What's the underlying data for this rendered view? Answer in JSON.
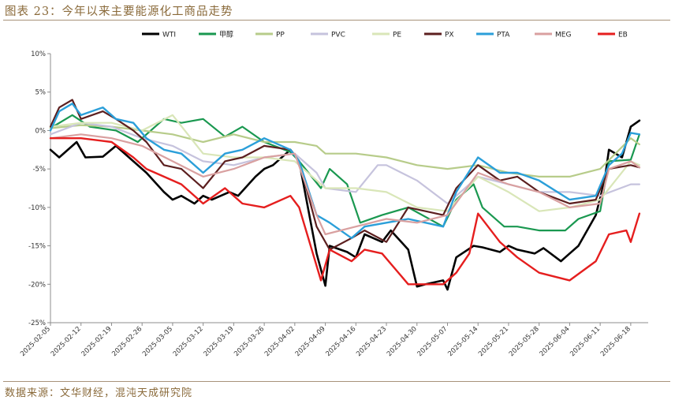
{
  "title": "图表 23：今年以来主要能源化工商品走势",
  "source": "数据来源：文华财经，混沌天成研究院",
  "chart_data": {
    "type": "line",
    "ylim": [
      -25,
      10
    ],
    "yticks": [
      10,
      5,
      0,
      -5,
      -10,
      -15,
      -20,
      -25
    ],
    "ytick_labels": [
      "10%",
      "5%",
      "0%",
      "-5%",
      "-10%",
      "-15%",
      "-20%",
      "-25%"
    ],
    "x_dates": [
      "2025-02-05",
      "2025-02-12",
      "2025-02-19",
      "2025-02-26",
      "2025-03-05",
      "2025-03-12",
      "2025-03-19",
      "2025-03-26",
      "2025-04-02",
      "2025-04-09",
      "2025-04-16",
      "2025-04-23",
      "2025-04-30",
      "2025-05-07",
      "2025-05-14",
      "2025-05-21",
      "2025-05-28",
      "2025-06-04",
      "2025-06-11",
      "2025-06-18"
    ],
    "x_labels": [
      "2025-02-05",
      "2025-02-12",
      "2025-02-19",
      "2025-02-26",
      "2025-03-05",
      "2025-03-12",
      "2025-03-19",
      "2025-03-26",
      "2025-04-02",
      "2025-04-09",
      "2025-04-16",
      "2025-04-23",
      "2025-04-30",
      "2025-05-07",
      "2025-05-14",
      "2025-05-21",
      "2025-05-28",
      "2025-06-04",
      "2025-06-11",
      "2025-06-18"
    ],
    "grid": false,
    "legend": "top",
    "series": [
      {
        "name": "WTI",
        "color": "#000000",
        "width": 2.6,
        "x": [
          "2025-02-05",
          "2025-02-07",
          "2025-02-11",
          "2025-02-13",
          "2025-02-17",
          "2025-02-20",
          "2025-02-24",
          "2025-02-27",
          "2025-03-03",
          "2025-03-05",
          "2025-03-07",
          "2025-03-10",
          "2025-03-12",
          "2025-03-14",
          "2025-03-18",
          "2025-03-20",
          "2025-03-24",
          "2025-03-26",
          "2025-03-28",
          "2025-04-01",
          "2025-04-03",
          "2025-04-07",
          "2025-04-09",
          "2025-04-10",
          "2025-04-14",
          "2025-04-16",
          "2025-04-18",
          "2025-04-22",
          "2025-04-24",
          "2025-04-28",
          "2025-04-30",
          "2025-05-02",
          "2025-05-06",
          "2025-05-07",
          "2025-05-09",
          "2025-05-13",
          "2025-05-15",
          "2025-05-19",
          "2025-05-21",
          "2025-05-23",
          "2025-05-27",
          "2025-05-29",
          "2025-06-02",
          "2025-06-04",
          "2025-06-06",
          "2025-06-10",
          "2025-06-12",
          "2025-06-13",
          "2025-06-16",
          "2025-06-18",
          "2025-06-20"
        ],
        "y": [
          -2.5,
          -3.5,
          -1.5,
          -3.5,
          -3.4,
          -2.0,
          -4.0,
          -5.5,
          -8.0,
          -9.0,
          -8.5,
          -9.5,
          -8.5,
          -9.0,
          -8.0,
          -8.5,
          -6.0,
          -5.0,
          -4.5,
          -2.5,
          -4.0,
          -16.0,
          -20.2,
          -15.0,
          -15.8,
          -16.5,
          -13.5,
          -14.5,
          -13.0,
          -15.5,
          -20.3,
          -20.0,
          -19.5,
          -20.7,
          -16.5,
          -15.0,
          -15.2,
          -15.8,
          -15.0,
          -15.5,
          -16.0,
          -15.3,
          -17.0,
          -16.0,
          -15.0,
          -11.0,
          -6.5,
          -2.5,
          -3.5,
          0.5,
          1.3
        ]
      },
      {
        "name": "甲醇",
        "color": "#1a9850",
        "width": 2.2,
        "x": [
          "2025-02-05",
          "2025-02-10",
          "2025-02-14",
          "2025-02-20",
          "2025-02-25",
          "2025-03-03",
          "2025-03-07",
          "2025-03-12",
          "2025-03-17",
          "2025-03-21",
          "2025-03-26",
          "2025-04-01",
          "2025-04-03",
          "2025-04-08",
          "2025-04-10",
          "2025-04-14",
          "2025-04-17",
          "2025-04-22",
          "2025-04-28",
          "2025-05-06",
          "2025-05-09",
          "2025-05-13",
          "2025-05-15",
          "2025-05-20",
          "2025-05-23",
          "2025-05-28",
          "2025-06-03",
          "2025-06-06",
          "2025-06-11",
          "2025-06-13",
          "2025-06-18",
          "2025-06-20"
        ],
        "y": [
          0.3,
          2.0,
          0.5,
          0.0,
          -1.5,
          1.5,
          1.0,
          1.5,
          -0.8,
          0.5,
          -1.5,
          -2.8,
          -4.0,
          -7.5,
          -5.0,
          -7.0,
          -12.0,
          -11.0,
          -10.0,
          -12.5,
          -9.0,
          -7.0,
          -10.0,
          -12.5,
          -12.5,
          -13.0,
          -13.0,
          -11.5,
          -10.5,
          -4.0,
          -3.8,
          -0.5
        ]
      },
      {
        "name": "PP",
        "color": "#b7cc8a",
        "width": 2.2,
        "x": [
          "2025-02-05",
          "2025-02-12",
          "2025-02-19",
          "2025-02-26",
          "2025-03-05",
          "2025-03-12",
          "2025-03-19",
          "2025-03-26",
          "2025-04-02",
          "2025-04-07",
          "2025-04-09",
          "2025-04-16",
          "2025-04-23",
          "2025-04-30",
          "2025-05-07",
          "2025-05-14",
          "2025-05-21",
          "2025-05-28",
          "2025-06-04",
          "2025-06-11",
          "2025-06-18",
          "2025-06-20"
        ],
        "y": [
          0.3,
          0.7,
          0.5,
          0.0,
          -0.5,
          -1.5,
          -0.5,
          -1.5,
          -1.5,
          -2.0,
          -3.0,
          -3.0,
          -3.5,
          -4.5,
          -5.0,
          -4.5,
          -5.5,
          -6.0,
          -6.0,
          -5.0,
          -1.0,
          -1.8
        ]
      },
      {
        "name": "PVC",
        "color": "#c6c3dd",
        "width": 2.2,
        "x": [
          "2025-02-05",
          "2025-02-12",
          "2025-02-19",
          "2025-02-26",
          "2025-03-05",
          "2025-03-12",
          "2025-03-19",
          "2025-03-26",
          "2025-04-02",
          "2025-04-07",
          "2025-04-09",
          "2025-04-16",
          "2025-04-21",
          "2025-04-23",
          "2025-04-30",
          "2025-05-07",
          "2025-05-14",
          "2025-05-21",
          "2025-05-28",
          "2025-06-04",
          "2025-06-11",
          "2025-06-18",
          "2025-06-20"
        ],
        "y": [
          -0.5,
          1.0,
          0.5,
          -1.0,
          -2.0,
          -4.0,
          -4.5,
          -3.5,
          -3.0,
          -5.5,
          -7.5,
          -8.0,
          -4.5,
          -4.5,
          -6.5,
          -9.5,
          -6.0,
          -7.0,
          -8.0,
          -8.0,
          -8.5,
          -7.0,
          -7.0
        ]
      },
      {
        "name": "PE",
        "color": "#d9e6b8",
        "width": 2.2,
        "x": [
          "2025-02-05",
          "2025-02-12",
          "2025-02-19",
          "2025-02-26",
          "2025-03-05",
          "2025-03-12",
          "2025-03-19",
          "2025-03-26",
          "2025-04-02",
          "2025-04-09",
          "2025-04-16",
          "2025-04-23",
          "2025-04-30",
          "2025-05-07",
          "2025-05-14",
          "2025-05-21",
          "2025-05-28",
          "2025-06-04",
          "2025-06-11",
          "2025-06-18",
          "2025-06-20"
        ],
        "y": [
          0.5,
          1.0,
          1.0,
          0.0,
          2.0,
          -3.0,
          -3.5,
          -3.5,
          -4.0,
          -7.5,
          -7.5,
          -8.0,
          -10.0,
          -10.5,
          -6.0,
          -8.0,
          -10.5,
          -10.0,
          -9.0,
          -4.0,
          -4.5
        ]
      },
      {
        "name": "PX",
        "color": "#5c1f1f",
        "width": 2.2,
        "x": [
          "2025-02-05",
          "2025-02-07",
          "2025-02-10",
          "2025-02-12",
          "2025-02-17",
          "2025-02-20",
          "2025-02-24",
          "2025-02-27",
          "2025-03-03",
          "2025-03-07",
          "2025-03-12",
          "2025-03-17",
          "2025-03-21",
          "2025-03-26",
          "2025-04-01",
          "2025-04-03",
          "2025-04-07",
          "2025-04-10",
          "2025-04-15",
          "2025-04-18",
          "2025-04-23",
          "2025-04-28",
          "2025-05-06",
          "2025-05-09",
          "2025-05-14",
          "2025-05-19",
          "2025-05-23",
          "2025-05-28",
          "2025-06-04",
          "2025-06-10",
          "2025-06-13",
          "2025-06-18",
          "2025-06-20"
        ],
        "y": [
          0.5,
          3.0,
          4.0,
          1.5,
          2.5,
          1.5,
          0.0,
          -1.5,
          -4.5,
          -5.0,
          -7.5,
          -4.0,
          -3.5,
          -2.0,
          -2.5,
          -4.0,
          -12.5,
          -15.5,
          -14.0,
          -13.0,
          -14.5,
          -10.0,
          -11.0,
          -7.5,
          -4.5,
          -6.5,
          -6.0,
          -8.0,
          -9.5,
          -9.0,
          -5.0,
          -4.5,
          -4.8
        ]
      },
      {
        "name": "PTA",
        "color": "#2b9fd9",
        "width": 2.4,
        "x": [
          "2025-02-05",
          "2025-02-07",
          "2025-02-10",
          "2025-02-12",
          "2025-02-17",
          "2025-02-20",
          "2025-02-24",
          "2025-02-27",
          "2025-03-03",
          "2025-03-07",
          "2025-03-12",
          "2025-03-17",
          "2025-03-21",
          "2025-03-26",
          "2025-04-01",
          "2025-04-03",
          "2025-04-07",
          "2025-04-10",
          "2025-04-15",
          "2025-04-18",
          "2025-04-23",
          "2025-04-28",
          "2025-05-06",
          "2025-05-09",
          "2025-05-14",
          "2025-05-19",
          "2025-05-23",
          "2025-05-28",
          "2025-06-04",
          "2025-06-10",
          "2025-06-13",
          "2025-06-16",
          "2025-06-18",
          "2025-06-20"
        ],
        "y": [
          0.0,
          2.5,
          3.5,
          2.0,
          3.0,
          1.5,
          1.0,
          -1.0,
          -2.5,
          -3.0,
          -5.5,
          -3.0,
          -2.5,
          -1.0,
          -2.5,
          -4.0,
          -11.0,
          -12.0,
          -14.0,
          -12.5,
          -12.0,
          -11.5,
          -12.5,
          -8.0,
          -3.5,
          -5.5,
          -5.5,
          -6.5,
          -9.0,
          -8.5,
          -4.5,
          -3.0,
          -0.3,
          -0.5
        ]
      },
      {
        "name": "MEG",
        "color": "#d9a0a0",
        "width": 2.2,
        "x": [
          "2025-02-05",
          "2025-02-12",
          "2025-02-19",
          "2025-02-26",
          "2025-03-05",
          "2025-03-12",
          "2025-03-19",
          "2025-03-26",
          "2025-04-02",
          "2025-04-07",
          "2025-04-09",
          "2025-04-16",
          "2025-04-23",
          "2025-04-30",
          "2025-05-07",
          "2025-05-14",
          "2025-05-21",
          "2025-05-28",
          "2025-06-04",
          "2025-06-11",
          "2025-06-13",
          "2025-06-18",
          "2025-06-20"
        ],
        "y": [
          -1.0,
          -0.5,
          -1.0,
          -2.0,
          -4.0,
          -6.0,
          -5.0,
          -3.5,
          -3.0,
          -11.0,
          -13.5,
          -12.5,
          -11.5,
          -12.0,
          -11.0,
          -5.5,
          -7.0,
          -8.0,
          -10.0,
          -9.5,
          -5.0,
          -4.0,
          -4.8
        ]
      },
      {
        "name": "EB",
        "color": "#e51e1e",
        "width": 2.4,
        "x": [
          "2025-02-05",
          "2025-02-12",
          "2025-02-19",
          "2025-02-24",
          "2025-02-27",
          "2025-03-03",
          "2025-03-07",
          "2025-03-12",
          "2025-03-17",
          "2025-03-21",
          "2025-03-26",
          "2025-04-01",
          "2025-04-03",
          "2025-04-08",
          "2025-04-10",
          "2025-04-15",
          "2025-04-18",
          "2025-04-22",
          "2025-04-28",
          "2025-05-06",
          "2025-05-09",
          "2025-05-12",
          "2025-05-14",
          "2025-05-19",
          "2025-05-23",
          "2025-05-28",
          "2025-06-04",
          "2025-06-10",
          "2025-06-13",
          "2025-06-17",
          "2025-06-18",
          "2025-06-20"
        ],
        "y": [
          -1.0,
          -1.0,
          -1.5,
          -3.5,
          -5.0,
          -6.0,
          -7.0,
          -9.5,
          -7.5,
          -9.5,
          -10.0,
          -8.5,
          -10.0,
          -19.5,
          -15.5,
          -17.0,
          -15.5,
          -16.0,
          -20.0,
          -20.0,
          -18.5,
          -16.0,
          -10.8,
          -14.5,
          -16.5,
          -18.5,
          -19.5,
          -17.0,
          -13.5,
          -13.0,
          -14.5,
          -10.8
        ]
      }
    ]
  }
}
